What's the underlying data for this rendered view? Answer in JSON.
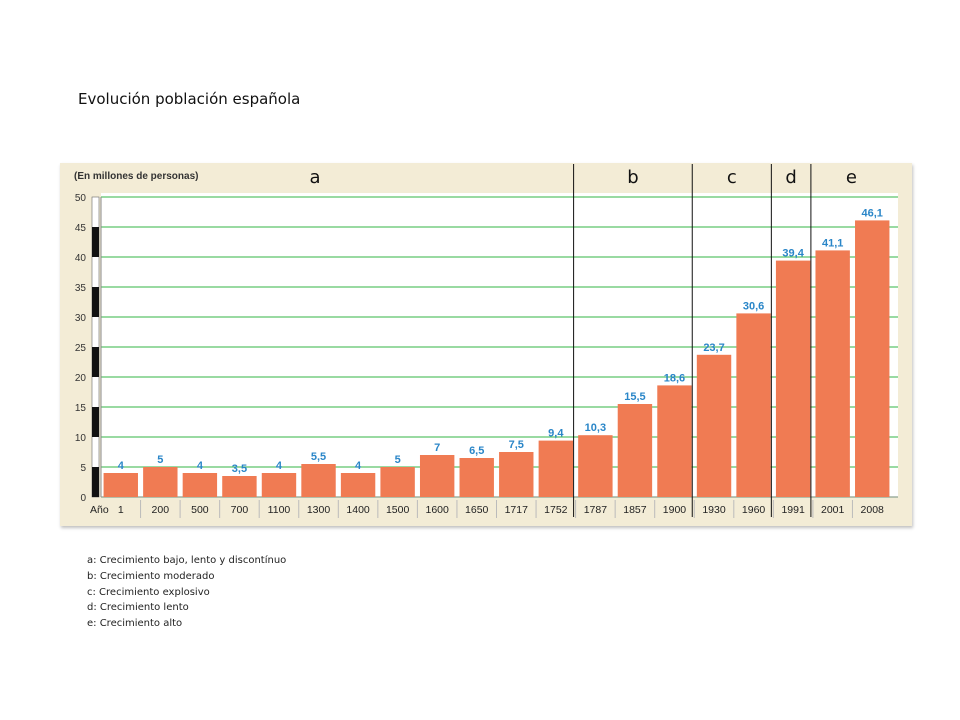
{
  "page": {
    "title": "Evolución población española"
  },
  "chart_data": {
    "type": "bar",
    "ylabel": "(En millones de personas)",
    "xlabel": "Año",
    "ylim": [
      0,
      50
    ],
    "yticks": [
      0,
      5,
      10,
      15,
      20,
      25,
      30,
      35,
      40,
      45,
      50
    ],
    "grid": true,
    "categories": [
      "1",
      "200",
      "500",
      "700",
      "1100",
      "1300",
      "1400",
      "1500",
      "1600",
      "1650",
      "1717",
      "1752",
      "1787",
      "1857",
      "1900",
      "1930",
      "1960",
      "1991",
      "2001",
      "2008"
    ],
    "values": [
      4,
      5,
      4,
      3.5,
      4,
      5.5,
      4,
      5,
      7,
      6.5,
      7.5,
      9.4,
      10.3,
      15.5,
      18.6,
      23.7,
      30.6,
      39.4,
      41.1,
      46.1
    ],
    "value_labels": [
      "4",
      "5",
      "4",
      "3,5",
      "4",
      "5,5",
      "4",
      "5",
      "7",
      "6,5",
      "7,5",
      "9,4",
      "10,3",
      "15,5",
      "18,6",
      "23,7",
      "30,6",
      "39,4",
      "41,1",
      "46,1"
    ],
    "bar_color": "#f07b53",
    "label_color": "#2a86c8",
    "grid_color": "#5cc46a",
    "phases": [
      "a",
      "b",
      "c",
      "d",
      "e"
    ],
    "phase_dividers_between": [
      12,
      15,
      17,
      18
    ]
  },
  "legend": [
    "a: Crecimiento bajo, lento y discontínuo",
    "b: Crecimiento moderado",
    "c: Crecimiento explosivo",
    "d: Crecimiento lento",
    "e: Crecimiento alto"
  ]
}
